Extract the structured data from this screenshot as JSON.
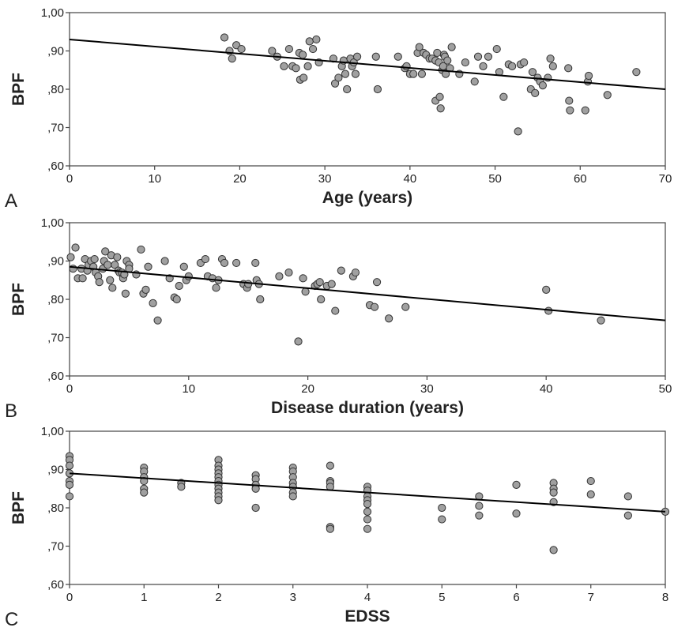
{
  "chart_data": [
    {
      "type": "scatter",
      "panel_label": "A",
      "xlabel": "Age (years)",
      "ylabel": "BPF",
      "xlim": [
        0,
        70
      ],
      "ylim": [
        0.6,
        1.0
      ],
      "x_ticks": [
        0,
        10,
        20,
        30,
        40,
        50,
        60,
        70
      ],
      "x_tick_labels": [
        "0",
        "10",
        "20",
        "30",
        "40",
        "50",
        "60",
        "70"
      ],
      "y_ticks": [
        0.6,
        0.7,
        0.8,
        0.9,
        1.0
      ],
      "y_tick_labels": [
        ",60",
        ",70",
        ",80",
        ",90",
        "1,00"
      ],
      "grid": false,
      "marker_color": "#a0a0a0",
      "line_color": "#000000",
      "fit_line": [
        [
          0,
          0.93
        ],
        [
          70,
          0.8
        ]
      ],
      "points": [
        [
          18.2,
          0.935
        ],
        [
          18.8,
          0.9
        ],
        [
          19.1,
          0.88
        ],
        [
          19.6,
          0.915
        ],
        [
          20.2,
          0.905
        ],
        [
          23.8,
          0.9
        ],
        [
          24.4,
          0.885
        ],
        [
          25.2,
          0.86
        ],
        [
          25.8,
          0.905
        ],
        [
          26.2,
          0.86
        ],
        [
          26.6,
          0.855
        ],
        [
          27.0,
          0.895
        ],
        [
          27.1,
          0.825
        ],
        [
          27.4,
          0.89
        ],
        [
          27.5,
          0.83
        ],
        [
          28.0,
          0.86
        ],
        [
          28.2,
          0.925
        ],
        [
          28.6,
          0.905
        ],
        [
          29.0,
          0.93
        ],
        [
          29.3,
          0.87
        ],
        [
          31.0,
          0.88
        ],
        [
          31.2,
          0.815
        ],
        [
          31.6,
          0.83
        ],
        [
          32.0,
          0.86
        ],
        [
          32.2,
          0.875
        ],
        [
          32.4,
          0.84
        ],
        [
          32.6,
          0.8
        ],
        [
          33.0,
          0.88
        ],
        [
          33.2,
          0.86
        ],
        [
          33.4,
          0.87
        ],
        [
          33.6,
          0.84
        ],
        [
          33.8,
          0.885
        ],
        [
          36.0,
          0.885
        ],
        [
          36.2,
          0.8
        ],
        [
          38.6,
          0.885
        ],
        [
          39.4,
          0.855
        ],
        [
          39.6,
          0.86
        ],
        [
          40.0,
          0.84
        ],
        [
          40.4,
          0.84
        ],
        [
          40.9,
          0.895
        ],
        [
          41.1,
          0.91
        ],
        [
          41.4,
          0.84
        ],
        [
          41.6,
          0.895
        ],
        [
          41.9,
          0.89
        ],
        [
          42.3,
          0.88
        ],
        [
          42.6,
          0.88
        ],
        [
          43.0,
          0.875
        ],
        [
          43.0,
          0.77
        ],
        [
          43.2,
          0.895
        ],
        [
          43.4,
          0.87
        ],
        [
          43.5,
          0.78
        ],
        [
          43.6,
          0.75
        ],
        [
          43.8,
          0.85
        ],
        [
          43.9,
          0.86
        ],
        [
          44.0,
          0.89
        ],
        [
          44.1,
          0.885
        ],
        [
          44.2,
          0.84
        ],
        [
          44.4,
          0.875
        ],
        [
          44.7,
          0.855
        ],
        [
          44.9,
          0.91
        ],
        [
          45.8,
          0.84
        ],
        [
          46.5,
          0.87
        ],
        [
          47.6,
          0.82
        ],
        [
          48.0,
          0.885
        ],
        [
          48.6,
          0.86
        ],
        [
          49.2,
          0.885
        ],
        [
          50.2,
          0.905
        ],
        [
          50.5,
          0.845
        ],
        [
          51.0,
          0.78
        ],
        [
          51.6,
          0.865
        ],
        [
          52.0,
          0.86
        ],
        [
          52.7,
          0.69
        ],
        [
          53.0,
          0.865
        ],
        [
          53.4,
          0.87
        ],
        [
          54.2,
          0.8
        ],
        [
          54.4,
          0.845
        ],
        [
          54.7,
          0.79
        ],
        [
          55.0,
          0.83
        ],
        [
          55.3,
          0.82
        ],
        [
          55.6,
          0.81
        ],
        [
          56.2,
          0.83
        ],
        [
          56.5,
          0.88
        ],
        [
          56.8,
          0.86
        ],
        [
          58.6,
          0.855
        ],
        [
          58.7,
          0.77
        ],
        [
          58.8,
          0.745
        ],
        [
          60.6,
          0.745
        ],
        [
          60.9,
          0.82
        ],
        [
          61.0,
          0.835
        ],
        [
          63.2,
          0.785
        ],
        [
          66.6,
          0.845
        ]
      ]
    },
    {
      "type": "scatter",
      "panel_label": "B",
      "xlabel": "Disease duration (years)",
      "ylabel": "BPF",
      "xlim": [
        0,
        50
      ],
      "ylim": [
        0.6,
        1.0
      ],
      "x_ticks": [
        0,
        10,
        20,
        30,
        40,
        50
      ],
      "x_tick_labels": [
        "0",
        "10",
        "20",
        "30",
        "40",
        "50"
      ],
      "y_ticks": [
        0.6,
        0.7,
        0.8,
        0.9,
        1.0
      ],
      "y_tick_labels": [
        ",60",
        ",70",
        ",80",
        ",90",
        "1,00"
      ],
      "grid": false,
      "marker_color": "#a0a0a0",
      "line_color": "#000000",
      "fit_line": [
        [
          0,
          0.885
        ],
        [
          50,
          0.745
        ]
      ],
      "points": [
        [
          0.1,
          0.91
        ],
        [
          0.3,
          0.88
        ],
        [
          0.5,
          0.935
        ],
        [
          0.7,
          0.855
        ],
        [
          1.0,
          0.88
        ],
        [
          1.1,
          0.855
        ],
        [
          1.3,
          0.905
        ],
        [
          1.5,
          0.875
        ],
        [
          1.6,
          0.89
        ],
        [
          1.8,
          0.9
        ],
        [
          2.0,
          0.885
        ],
        [
          2.1,
          0.905
        ],
        [
          2.2,
          0.87
        ],
        [
          2.4,
          0.86
        ],
        [
          2.5,
          0.845
        ],
        [
          2.8,
          0.88
        ],
        [
          2.9,
          0.9
        ],
        [
          3.0,
          0.925
        ],
        [
          3.2,
          0.89
        ],
        [
          3.4,
          0.85
        ],
        [
          3.5,
          0.915
        ],
        [
          3.6,
          0.83
        ],
        [
          3.8,
          0.89
        ],
        [
          4.0,
          0.91
        ],
        [
          4.1,
          0.875
        ],
        [
          4.2,
          0.87
        ],
        [
          4.4,
          0.87
        ],
        [
          4.5,
          0.855
        ],
        [
          4.6,
          0.865
        ],
        [
          4.7,
          0.815
        ],
        [
          4.8,
          0.9
        ],
        [
          5.0,
          0.89
        ],
        [
          5.0,
          0.88
        ],
        [
          5.6,
          0.865
        ],
        [
          6.0,
          0.93
        ],
        [
          6.2,
          0.815
        ],
        [
          6.4,
          0.825
        ],
        [
          6.6,
          0.885
        ],
        [
          7.0,
          0.79
        ],
        [
          7.4,
          0.745
        ],
        [
          8.0,
          0.9
        ],
        [
          8.4,
          0.855
        ],
        [
          8.8,
          0.805
        ],
        [
          9.0,
          0.8
        ],
        [
          9.2,
          0.835
        ],
        [
          9.6,
          0.885
        ],
        [
          9.8,
          0.85
        ],
        [
          10.0,
          0.86
        ],
        [
          11.0,
          0.895
        ],
        [
          11.4,
          0.905
        ],
        [
          11.6,
          0.86
        ],
        [
          12.0,
          0.855
        ],
        [
          12.3,
          0.83
        ],
        [
          12.5,
          0.85
        ],
        [
          12.8,
          0.905
        ],
        [
          13.0,
          0.895
        ],
        [
          14.0,
          0.895
        ],
        [
          14.6,
          0.84
        ],
        [
          14.9,
          0.83
        ],
        [
          15.0,
          0.84
        ],
        [
          15.6,
          0.895
        ],
        [
          15.7,
          0.85
        ],
        [
          15.9,
          0.84
        ],
        [
          16.0,
          0.8
        ],
        [
          17.6,
          0.86
        ],
        [
          18.4,
          0.87
        ],
        [
          19.2,
          0.69
        ],
        [
          19.6,
          0.855
        ],
        [
          19.8,
          0.82
        ],
        [
          20.6,
          0.835
        ],
        [
          20.8,
          0.84
        ],
        [
          21.0,
          0.845
        ],
        [
          21.1,
          0.8
        ],
        [
          21.6,
          0.835
        ],
        [
          22.0,
          0.84
        ],
        [
          22.3,
          0.77
        ],
        [
          22.8,
          0.875
        ],
        [
          23.8,
          0.86
        ],
        [
          24.0,
          0.87
        ],
        [
          25.2,
          0.785
        ],
        [
          25.6,
          0.78
        ],
        [
          25.8,
          0.845
        ],
        [
          26.8,
          0.75
        ],
        [
          28.2,
          0.78
        ],
        [
          40.0,
          0.825
        ],
        [
          40.2,
          0.77
        ],
        [
          44.6,
          0.745
        ]
      ]
    },
    {
      "type": "scatter",
      "panel_label": "C",
      "xlabel": "EDSS",
      "ylabel": "BPF",
      "xlim": [
        0,
        8
      ],
      "ylim": [
        0.6,
        1.0
      ],
      "x_ticks": [
        0,
        1,
        2,
        3,
        4,
        5,
        6,
        7,
        8
      ],
      "x_tick_labels": [
        "0",
        "1",
        "2",
        "3",
        "4",
        "5",
        "6",
        "7",
        "8"
      ],
      "y_ticks": [
        0.6,
        0.7,
        0.8,
        0.9,
        1.0
      ],
      "y_tick_labels": [
        ",60",
        ",70",
        ",80",
        ",90",
        "1,00"
      ],
      "grid": false,
      "marker_color": "#a0a0a0",
      "line_color": "#000000",
      "fit_line": [
        [
          0,
          0.89
        ],
        [
          8,
          0.79
        ]
      ],
      "points": [
        [
          0,
          0.935
        ],
        [
          0,
          0.925
        ],
        [
          0,
          0.91
        ],
        [
          0,
          0.89
        ],
        [
          0,
          0.87
        ],
        [
          0,
          0.86
        ],
        [
          0,
          0.83
        ],
        [
          1,
          0.905
        ],
        [
          1,
          0.895
        ],
        [
          1,
          0.88
        ],
        [
          1,
          0.87
        ],
        [
          1,
          0.85
        ],
        [
          1,
          0.84
        ],
        [
          1.5,
          0.865
        ],
        [
          1.5,
          0.855
        ],
        [
          2,
          0.925
        ],
        [
          2,
          0.91
        ],
        [
          2,
          0.9
        ],
        [
          2,
          0.89
        ],
        [
          2,
          0.88
        ],
        [
          2,
          0.87
        ],
        [
          2,
          0.86
        ],
        [
          2,
          0.85
        ],
        [
          2,
          0.84
        ],
        [
          2,
          0.83
        ],
        [
          2,
          0.82
        ],
        [
          2.5,
          0.885
        ],
        [
          2.5,
          0.875
        ],
        [
          2.5,
          0.86
        ],
        [
          2.5,
          0.85
        ],
        [
          2.5,
          0.8
        ],
        [
          3,
          0.905
        ],
        [
          3,
          0.895
        ],
        [
          3,
          0.88
        ],
        [
          3,
          0.865
        ],
        [
          3,
          0.855
        ],
        [
          3,
          0.84
        ],
        [
          3,
          0.83
        ],
        [
          3.5,
          0.91
        ],
        [
          3.5,
          0.87
        ],
        [
          3.5,
          0.865
        ],
        [
          3.5,
          0.855
        ],
        [
          3.5,
          0.75
        ],
        [
          3.5,
          0.745
        ],
        [
          4,
          0.855
        ],
        [
          4,
          0.845
        ],
        [
          4,
          0.83
        ],
        [
          4,
          0.82
        ],
        [
          4,
          0.81
        ],
        [
          4,
          0.79
        ],
        [
          4,
          0.77
        ],
        [
          4,
          0.745
        ],
        [
          5,
          0.8
        ],
        [
          5,
          0.77
        ],
        [
          5.5,
          0.83
        ],
        [
          5.5,
          0.805
        ],
        [
          5.5,
          0.78
        ],
        [
          6,
          0.86
        ],
        [
          6,
          0.785
        ],
        [
          6.5,
          0.865
        ],
        [
          6.5,
          0.85
        ],
        [
          6.5,
          0.84
        ],
        [
          6.5,
          0.815
        ],
        [
          6.5,
          0.69
        ],
        [
          7,
          0.87
        ],
        [
          7,
          0.835
        ],
        [
          7.5,
          0.83
        ],
        [
          7.5,
          0.78
        ],
        [
          8,
          0.79
        ]
      ]
    }
  ]
}
